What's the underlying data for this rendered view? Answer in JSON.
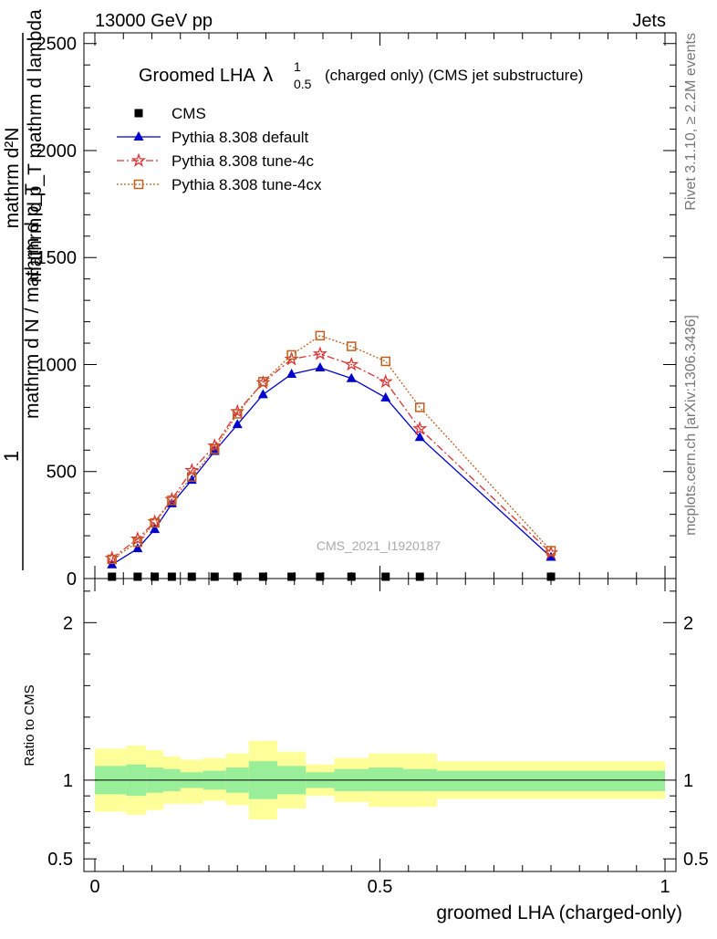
{
  "header": {
    "energy_label": "13000 GeV pp",
    "process_label": "Jets"
  },
  "side_labels": {
    "rivet": "Rivet 3.1.10, ≥ 2.2M events",
    "mcplots": "mcplots.cern.ch [arXiv:1306.3436]"
  },
  "chart_data": [
    {
      "type": "line",
      "title": "Groomed LHA",
      "title_symbol": "λ",
      "title_sup": "1",
      "title_sub": "0.5",
      "title_suffix": "(charged only) (CMS jet substructure)",
      "ylabel_num": "mathrm d²N",
      "ylabel_den": "mathrm d p_T mathrm d lambda",
      "ylabel_factor": "1",
      "ylabel_norm": "mathrm d N / mathrm d p_T",
      "watermark": "CMS_2021_I1920187",
      "xlim": [
        0,
        1
      ],
      "ylim": [
        0,
        2550
      ],
      "y_ticks": [
        500,
        1000,
        1500,
        2000,
        2500
      ],
      "y_tick_labels": [
        "500",
        "1000",
        "1500",
        "2000",
        "2500"
      ],
      "y_zero_label": "0",
      "legend_position": "top-left",
      "series": [
        {
          "name": "CMS",
          "color": "#000000",
          "marker": "square",
          "line": "none",
          "x": [
            0.03,
            0.075,
            0.105,
            0.135,
            0.17,
            0.21,
            0.25,
            0.295,
            0.345,
            0.395,
            0.45,
            0.51,
            0.57,
            0.8
          ],
          "y": [
            0,
            0,
            0,
            0,
            0,
            0,
            0,
            0,
            0,
            0,
            0,
            0,
            0,
            0
          ]
        },
        {
          "name": "Pythia 8.308 default",
          "color": "#0000cc",
          "marker": "triangle",
          "line": "solid",
          "x": [
            0.03,
            0.075,
            0.105,
            0.135,
            0.17,
            0.21,
            0.25,
            0.295,
            0.345,
            0.395,
            0.45,
            0.51,
            0.57,
            0.8
          ],
          "y": [
            65,
            140,
            230,
            350,
            460,
            595,
            720,
            860,
            955,
            985,
            935,
            845,
            660,
            100
          ]
        },
        {
          "name": "Pythia 8.308 tune-4c",
          "color": "#dd3333",
          "marker": "star",
          "line": "dashdot",
          "x": [
            0.03,
            0.075,
            0.105,
            0.135,
            0.17,
            0.21,
            0.25,
            0.295,
            0.345,
            0.395,
            0.45,
            0.51,
            0.57,
            0.8
          ],
          "y": [
            95,
            185,
            265,
            370,
            505,
            620,
            780,
            915,
            1025,
            1050,
            1000,
            920,
            700,
            120
          ]
        },
        {
          "name": "Pythia 8.308 tune-4cx",
          "color": "#c06020",
          "marker": "open-square",
          "line": "dotted",
          "x": [
            0.03,
            0.075,
            0.105,
            0.135,
            0.17,
            0.21,
            0.25,
            0.295,
            0.345,
            0.395,
            0.45,
            0.51,
            0.57,
            0.8
          ],
          "y": [
            90,
            170,
            260,
            365,
            475,
            605,
            770,
            920,
            1045,
            1135,
            1085,
            1015,
            800,
            130
          ]
        }
      ]
    },
    {
      "type": "area",
      "ylabel": "Ratio to CMS",
      "xlabel": "groomed LHA (charged-only)",
      "xlim": [
        0,
        1
      ],
      "ylim": [
        0.42,
        2.28
      ],
      "x_ticks": [
        0,
        0.5,
        1
      ],
      "x_tick_labels": [
        "0",
        "0.5",
        "1"
      ],
      "y_ticks": [
        0.5,
        1,
        2
      ],
      "y_tick_labels": [
        "0.5",
        "1",
        "2"
      ],
      "reference_line": 1,
      "bin_edges": [
        0,
        0.055,
        0.09,
        0.12,
        0.15,
        0.19,
        0.23,
        0.27,
        0.32,
        0.37,
        0.42,
        0.48,
        0.54,
        0.6,
        1.0
      ],
      "bands": [
        {
          "name": "stat",
          "color": "#99ee99",
          "lower": [
            0.91,
            0.9,
            0.92,
            0.93,
            0.95,
            0.94,
            0.92,
            0.88,
            0.91,
            0.95,
            0.93,
            0.93,
            0.93,
            0.93
          ],
          "upper": [
            1.09,
            1.1,
            1.08,
            1.07,
            1.05,
            1.06,
            1.08,
            1.12,
            1.09,
            1.05,
            1.07,
            1.08,
            1.07,
            1.06
          ]
        },
        {
          "name": "total",
          "color": "#ffff99",
          "lower": [
            0.8,
            0.78,
            0.81,
            0.85,
            0.85,
            0.87,
            0.84,
            0.75,
            0.82,
            0.9,
            0.86,
            0.83,
            0.83,
            0.88
          ],
          "upper": [
            1.2,
            1.22,
            1.19,
            1.15,
            1.13,
            1.14,
            1.17,
            1.25,
            1.18,
            1.1,
            1.14,
            1.17,
            1.17,
            1.12
          ]
        }
      ]
    }
  ]
}
